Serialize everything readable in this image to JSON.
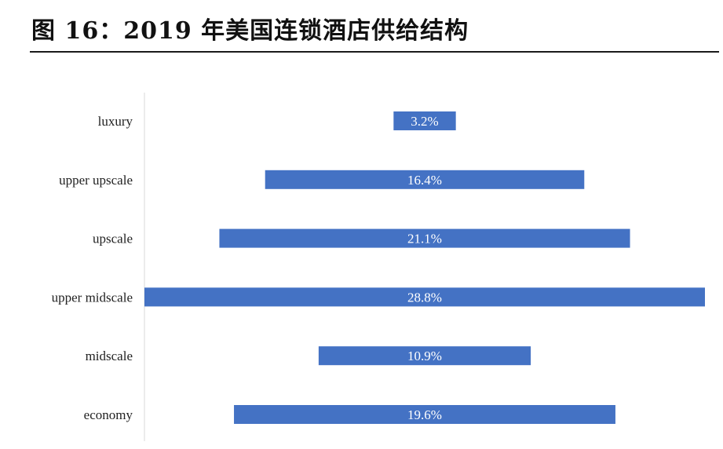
{
  "title": "图 16：2019 年美国连锁酒店供给结构",
  "chart_data": {
    "type": "bar",
    "orientation": "horizontal",
    "layout": "centered-funnel",
    "title": "图 16：2019 年美国连锁酒店供给结构",
    "xlabel": "",
    "ylabel": "",
    "categories": [
      "luxury",
      "upper upscale",
      "upscale",
      "upper midscale",
      "midscale",
      "economy"
    ],
    "values": [
      3.2,
      16.4,
      21.1,
      28.8,
      10.9,
      19.6
    ],
    "value_labels": [
      "3.2%",
      "16.4%",
      "21.1%",
      "28.8%",
      "10.9%",
      "19.6%"
    ],
    "unit": "%",
    "grid": false,
    "legend": "none",
    "bar_color": "#4472C4"
  }
}
